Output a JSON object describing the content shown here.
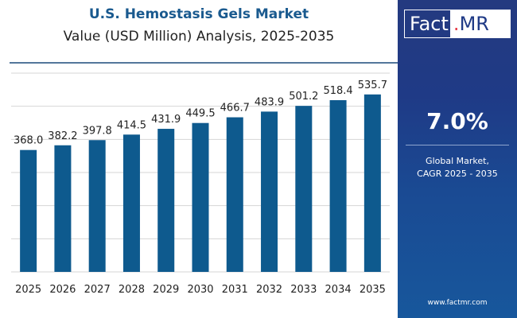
{
  "chart_data": {
    "type": "bar",
    "title": "U.S. Hemostasis Gels Market",
    "subtitle": "Value (USD Million) Analysis, 2025-2035",
    "categories": [
      "2025",
      "2026",
      "2027",
      "2028",
      "2029",
      "2030",
      "2031",
      "2032",
      "2033",
      "2034",
      "2035"
    ],
    "values": [
      368.0,
      382.2,
      397.8,
      414.5,
      431.9,
      449.5,
      466.7,
      483.9,
      501.2,
      518.4,
      535.7
    ],
    "value_labels": [
      "368.0",
      "382.2",
      "397.8",
      "414.5",
      "431.9",
      "449.5",
      "466.7",
      "483.9",
      "501.2",
      "518.4",
      "535.7"
    ],
    "xlabel": "",
    "ylabel": "",
    "ylim": [
      0,
      600
    ],
    "grid": true,
    "bar_color": "#0e5a8e",
    "grid_color": "#d6d6d6"
  },
  "side_panel": {
    "logo_left": "Fact",
    "logo_dot": ".",
    "logo_right": "MR",
    "cagr_value": "7.0%",
    "cagr_line1": "Global Market,",
    "cagr_line2": "CAGR 2025 - 2035",
    "website": "www.factmr.com",
    "accent_color": "#e63946",
    "panel_color": "#1f3a86"
  }
}
